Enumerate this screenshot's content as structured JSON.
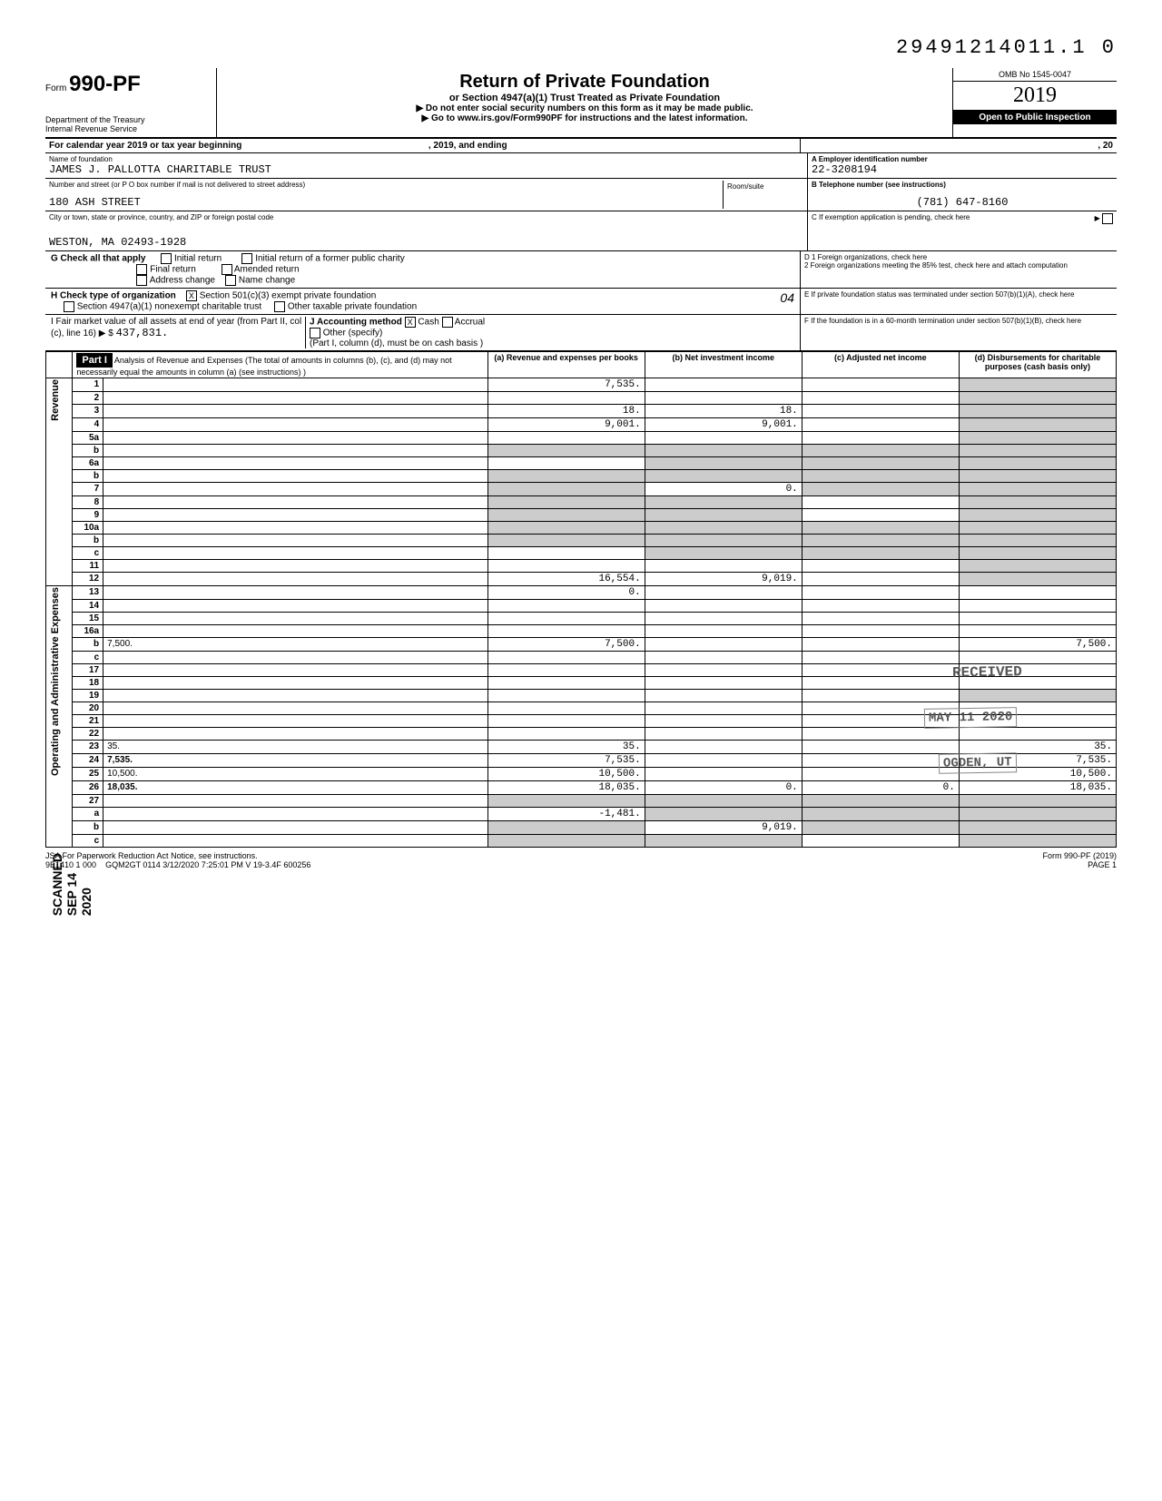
{
  "doc_number": "29491214011.1  0",
  "header": {
    "form_prefix": "Form",
    "form_number": "990-PF",
    "dept1": "Department of the Treasury",
    "dept2": "Internal Revenue Service",
    "title": "Return of Private Foundation",
    "subtitle": "or Section 4947(a)(1) Trust Treated as Private Foundation",
    "instr1": "▶ Do not enter social security numbers on this form as it may be made public.",
    "instr2": "▶ Go to www.irs.gov/Form990PF for instructions and the latest information.",
    "omb": "OMB No 1545-0047",
    "year": "2019",
    "inspection": "Open to Public Inspection"
  },
  "calendar": {
    "text": "For calendar year 2019 or tax year beginning",
    "mid": ", 2019, and ending",
    "end": ", 20"
  },
  "foundation": {
    "name_label": "Name of foundation",
    "name": "JAMES J. PALLOTTA CHARITABLE TRUST",
    "addr_label": "Number and street (or P O box number if mail is not delivered to street address)",
    "street": "180 ASH STREET",
    "room_label": "Room/suite",
    "city_label": "City or town, state or province, country, and ZIP or foreign postal code",
    "city": "WESTON, MA 02493-1928",
    "ein_label": "A  Employer identification number",
    "ein": "22-3208194",
    "phone_label": "B  Telephone number (see instructions)",
    "phone": "(781) 647-8160",
    "c_label": "C  If exemption application is pending, check here"
  },
  "section_g": {
    "label": "G  Check all that apply",
    "opts": [
      "Initial return",
      "Final return",
      "Address change",
      "Initial return of a former public charity",
      "Amended return",
      "Name change"
    ]
  },
  "section_h": {
    "label": "H  Check type of organization",
    "opt1": "Section 501(c)(3) exempt private foundation",
    "opt2": "Section 4947(a)(1) nonexempt charitable trust",
    "opt3": "Other taxable private foundation",
    "mark": "X"
  },
  "section_i": {
    "label": "I  Fair market value of all assets at end of year (from Part II, col (c), line 16) ▶ $",
    "value": "437,831.",
    "j_label": "J Accounting method",
    "cash": "Cash",
    "accrual": "Accrual",
    "other": "Other (specify)",
    "note": "(Part I, column (d), must be on cash basis )",
    "mark": "X"
  },
  "right_box": {
    "d1": "D 1 Foreign organizations, check here",
    "d2": "2 Foreign organizations meeting the 85% test, check here and attach computation",
    "e": "E  If private foundation status was terminated under section 507(b)(1)(A), check here",
    "f": "F  If the foundation is in a 60-month termination under section 507(b)(1)(B), check here"
  },
  "part1": {
    "title": "Part I",
    "desc": "Analysis of Revenue and Expenses (The total of amounts in columns (b), (c), and (d) may not necessarily equal the amounts in column (a) (see instructions) )",
    "cols": {
      "a": "(a) Revenue and expenses per books",
      "b": "(b) Net investment income",
      "c": "(c) Adjusted net income",
      "d": "(d) Disbursements for charitable purposes (cash basis only)"
    }
  },
  "sections": {
    "revenue": "Revenue",
    "expenses": "Operating and Administrative Expenses"
  },
  "rows": [
    {
      "n": "1",
      "d": "",
      "a": "7,535.",
      "b": "",
      "c": "",
      "d_shaded": true
    },
    {
      "n": "2",
      "d": "",
      "a": "",
      "b": "",
      "c": "",
      "d_shaded": true
    },
    {
      "n": "3",
      "d": "",
      "a": "18.",
      "b": "18.",
      "c": "",
      "d_shaded": true
    },
    {
      "n": "4",
      "d": "",
      "a": "9,001.",
      "b": "9,001.",
      "c": "",
      "d_shaded": true
    },
    {
      "n": "5a",
      "d": "",
      "a": "",
      "b": "",
      "c": "",
      "d_shaded": true
    },
    {
      "n": "b",
      "d": "",
      "a": "",
      "b": "",
      "c": "",
      "all_shaded": true
    },
    {
      "n": "6a",
      "d": "",
      "a": "",
      "b": "",
      "c": "",
      "bcd_shaded": true
    },
    {
      "n": "b",
      "d": "",
      "a": "",
      "b": "",
      "c": "",
      "all_shaded": true
    },
    {
      "n": "7",
      "d": "",
      "a": "",
      "b": "0.",
      "c": "",
      "a_shaded": true,
      "cd_shaded": true
    },
    {
      "n": "8",
      "d": "",
      "a": "",
      "b": "",
      "c": "",
      "ab_shaded": true,
      "d_shaded": true
    },
    {
      "n": "9",
      "d": "",
      "a": "",
      "b": "",
      "c": "",
      "ab_shaded": true,
      "d_shaded": true
    },
    {
      "n": "10a",
      "d": "",
      "a": "",
      "b": "",
      "c": "",
      "all_shaded": true
    },
    {
      "n": "b",
      "d": "",
      "a": "",
      "b": "",
      "c": "",
      "all_shaded": true
    },
    {
      "n": "c",
      "d": "",
      "a": "",
      "b": "",
      "c": "",
      "bcd_shaded": true,
      "b_shaded": true,
      "d_shaded": true
    },
    {
      "n": "11",
      "d": "",
      "a": "",
      "b": "",
      "c": "",
      "d_shaded": true
    },
    {
      "n": "12",
      "d": "",
      "a": "16,554.",
      "b": "9,019.",
      "c": "",
      "d_shaded": true,
      "bold": true
    },
    {
      "n": "13",
      "d": "",
      "a": "0.",
      "b": "",
      "c": ""
    },
    {
      "n": "14",
      "d": "",
      "a": "",
      "b": "",
      "c": ""
    },
    {
      "n": "15",
      "d": "",
      "a": "",
      "b": "",
      "c": ""
    },
    {
      "n": "16a",
      "d": "",
      "a": "",
      "b": "",
      "c": ""
    },
    {
      "n": "b",
      "d": "7,500.",
      "a": "7,500.",
      "b": "",
      "c": ""
    },
    {
      "n": "c",
      "d": "",
      "a": "",
      "b": "",
      "c": ""
    },
    {
      "n": "17",
      "d": "",
      "a": "",
      "b": "",
      "c": ""
    },
    {
      "n": "18",
      "d": "",
      "a": "",
      "b": "",
      "c": ""
    },
    {
      "n": "19",
      "d": "",
      "a": "",
      "b": "",
      "c": "",
      "d_shaded": true
    },
    {
      "n": "20",
      "d": "",
      "a": "",
      "b": "",
      "c": ""
    },
    {
      "n": "21",
      "d": "",
      "a": "",
      "b": "",
      "c": ""
    },
    {
      "n": "22",
      "d": "",
      "a": "",
      "b": "",
      "c": ""
    },
    {
      "n": "23",
      "d": "35.",
      "a": "35.",
      "b": "",
      "c": ""
    },
    {
      "n": "24",
      "d": "7,535.",
      "a": "7,535.",
      "b": "",
      "c": "",
      "bold": true
    },
    {
      "n": "25",
      "d": "10,500.",
      "a": "10,500.",
      "b": "",
      "c": ""
    },
    {
      "n": "26",
      "d": "18,035.",
      "a": "18,035.",
      "b": "0.",
      "c": "0.",
      "bold": true
    },
    {
      "n": "27",
      "d": "",
      "a": "",
      "b": "",
      "c": "",
      "all_shaded": true
    },
    {
      "n": "a",
      "d": "",
      "a": "-1,481.",
      "b": "",
      "c": "",
      "bcd_shaded": true
    },
    {
      "n": "b",
      "d": "",
      "a": "",
      "b": "9,019.",
      "c": "",
      "a_shaded": true,
      "cd_shaded": true,
      "bold": true
    },
    {
      "n": "c",
      "d": "",
      "a": "",
      "b": "",
      "c": "",
      "ab_shaded": true,
      "d_shaded": true,
      "bold": true
    }
  ],
  "stamps": {
    "received": "RECEIVED",
    "date": "MAY 11 2020",
    "city": "OGDEN, UT"
  },
  "left_margin": {
    "scanned": "SCANNED  SEP 14 2020",
    "handwritten": "03 04"
  },
  "footer": {
    "l1": "JSA For Paperwork Reduction Act Notice, see instructions.",
    "l2": "9E1410 1 000",
    "l3": "GQM2GT 0114  3/12/2020   7:25:01 PM   V 19-3.4F          600256",
    "r1": "Form 990-PF (2019)",
    "r2": "PAGE 1"
  }
}
